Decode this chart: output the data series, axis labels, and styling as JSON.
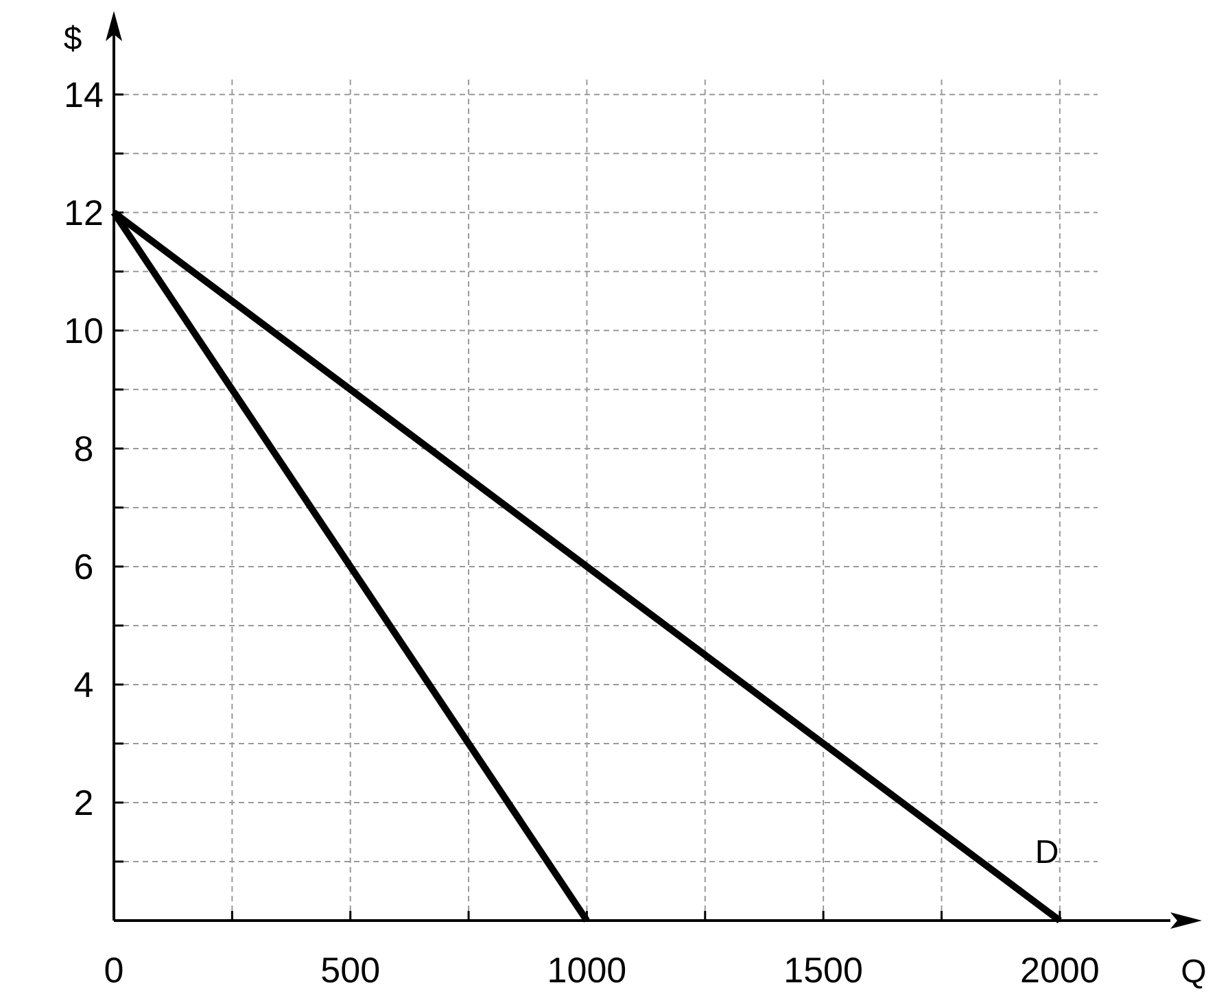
{
  "chart_data": {
    "type": "line",
    "xlabel": "Q",
    "ylabel": "$",
    "xlim": [
      0,
      2080
    ],
    "ylim": [
      0,
      14.3
    ],
    "xticks": [
      {
        "value": 0,
        "label": "0"
      },
      {
        "value": 250,
        "label": null
      },
      500,
      {
        "value": 750,
        "label": null
      },
      1000,
      {
        "value": 1250,
        "label": null
      },
      1500,
      {
        "value": 1750,
        "label": null
      },
      2000
    ],
    "yticks": [
      {
        "value": 1,
        "label": null
      },
      2,
      {
        "value": 3,
        "label": null
      },
      4,
      {
        "value": 5,
        "label": null
      },
      6,
      {
        "value": 7,
        "label": null
      },
      8,
      {
        "value": 9,
        "label": null
      },
      10,
      {
        "value": 11,
        "label": null
      },
      12,
      {
        "value": 13,
        "label": null
      },
      14
    ],
    "grid": true,
    "line_style": "solid",
    "marker": "none",
    "series": [
      {
        "color": "#000000",
        "x": [
          0,
          1000
        ],
        "values": [
          12,
          0
        ]
      },
      {
        "name": "D",
        "color": "#000000",
        "x": [
          0,
          2000
        ],
        "values": [
          12,
          0
        ]
      }
    ]
  }
}
